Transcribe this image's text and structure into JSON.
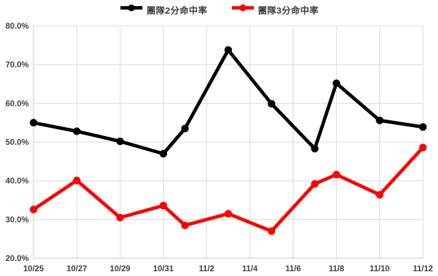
{
  "legend": {
    "items": [
      {
        "label": "團隊2分命中率",
        "color": "#000000"
      },
      {
        "label": "團隊3分命中率",
        "color": "#ff0000"
      }
    ]
  },
  "chart_data": {
    "type": "line",
    "title": "",
    "xlabel": "",
    "ylabel": "",
    "grid": true,
    "legend_position": "top",
    "x_axis": {
      "type": "date",
      "tick_labels": [
        "10/25",
        "10/27",
        "10/29",
        "10/31",
        "11/2",
        "11/4",
        "11/6",
        "11/8",
        "11/10",
        "11/12"
      ],
      "tick_day_offsets": [
        0,
        2,
        4,
        6,
        8,
        10,
        12,
        14,
        16,
        18
      ],
      "range_day_offsets": [
        0,
        18
      ]
    },
    "y_axis": {
      "tick_labels": [
        "20.0%",
        "30.0%",
        "40.0%",
        "50.0%",
        "60.0%",
        "70.0%",
        "80.0%"
      ],
      "min": 20,
      "max": 80,
      "step": 10,
      "unit": "%"
    },
    "x_day_offsets": [
      0,
      2,
      4,
      6,
      7,
      9,
      11,
      13,
      14,
      16,
      18
    ],
    "series": [
      {
        "name": "團隊2分命中率",
        "color": "#000000",
        "values": [
          55.0,
          52.8,
          50.2,
          47.0,
          53.5,
          73.8,
          59.9,
          48.3,
          65.2,
          55.6,
          53.9
        ]
      },
      {
        "name": "團隊3分命中率",
        "color": "#ff0000",
        "values": [
          32.6,
          40.1,
          30.5,
          33.6,
          28.5,
          31.5,
          27.0,
          39.2,
          41.6,
          36.4,
          48.6
        ]
      }
    ],
    "colors": {
      "background": "#ffffff",
      "gridline": "#d9d9d9",
      "axis_line": "#c6c6c6",
      "tick_text": "#404040"
    }
  }
}
